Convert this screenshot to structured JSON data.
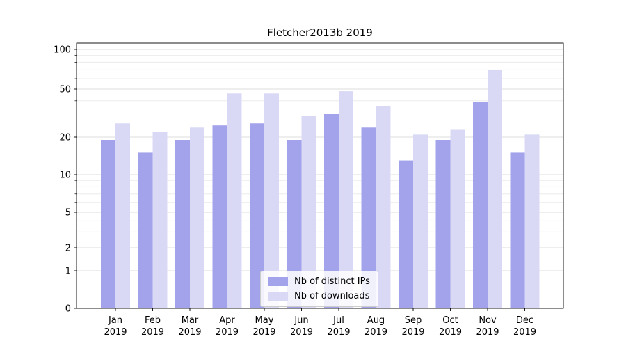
{
  "chart_data": {
    "type": "bar",
    "title": "Fletcher2013b 2019",
    "categories": [
      "Jan",
      "Feb",
      "Mar",
      "Apr",
      "May",
      "Jun",
      "Jul",
      "Aug",
      "Sep",
      "Oct",
      "Nov",
      "Dec"
    ],
    "x_tick_year": "2019",
    "series": [
      {
        "name": "Nb of distinct IPs",
        "color": "#a3a3ec",
        "values": [
          19,
          15,
          19,
          25,
          26,
          19,
          31,
          24,
          13,
          19,
          39,
          15
        ]
      },
      {
        "name": "Nb of downloads",
        "color": "#d9d9f6",
        "values": [
          26,
          22,
          24,
          46,
          46,
          30,
          48,
          36,
          21,
          23,
          70,
          21
        ]
      }
    ],
    "yscale": "symlog",
    "ylim": [
      0,
      100
    ],
    "y_ticks": [
      0,
      1,
      2,
      5,
      10,
      20,
      50,
      100
    ],
    "y_minor_ticks": [
      3,
      4,
      6,
      7,
      8,
      9,
      30,
      40,
      60,
      70,
      80,
      90
    ],
    "grid": "horizontal-major-and-minor",
    "legend_position": "lower center"
  },
  "colors": {
    "axis": "#000000",
    "grid_major": "#dedede",
    "grid_minor": "#ececec",
    "background": "#ffffff"
  }
}
